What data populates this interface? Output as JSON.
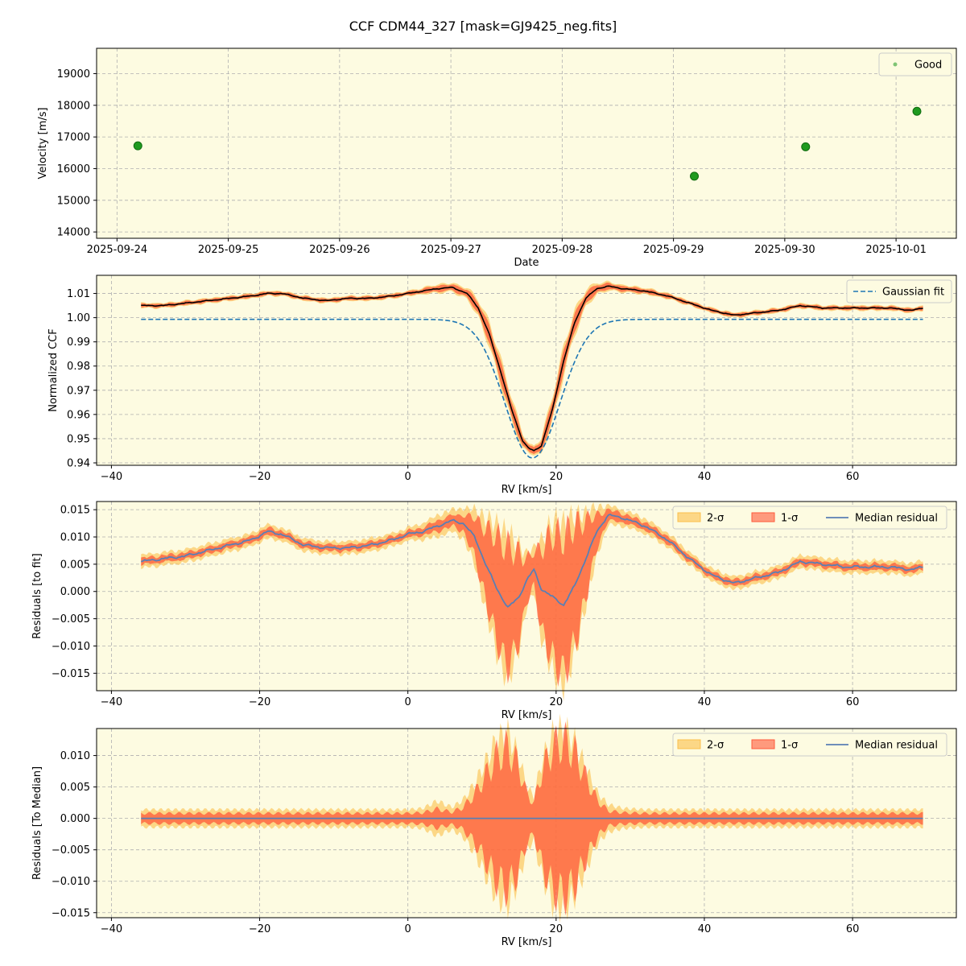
{
  "figure_title": "CCF CDM44_327 [mask=GJ9425_neg.fits]",
  "colors": {
    "background": "#fdfbe1",
    "good": "#2ca02c",
    "gaussian": "#1f77b4",
    "sigma2": "#fbbf4a",
    "sigma1": "#ff5a3a",
    "median_line": "#5a7fb4",
    "ccf_line": "#000000",
    "grid": "#b0b0b0"
  },
  "chart_data": [
    {
      "type": "scatter",
      "xlabel": "Date",
      "ylabel": "Velocity [m/s]",
      "x_tick_labels": [
        "2025-09-24",
        "2025-09-25",
        "2025-09-26",
        "2025-09-27",
        "2025-09-28",
        "2025-09-29",
        "2025-09-30",
        "2025-10-01"
      ],
      "x_ticks_days": [
        0,
        1,
        2,
        3,
        4,
        5,
        6,
        7
      ],
      "xlim": [
        "2025-09-23 19:36",
        "2025-10-01 13:00"
      ],
      "ylim": [
        13800,
        19800
      ],
      "y_ticks": [
        14000,
        15000,
        16000,
        17000,
        18000,
        19000
      ],
      "legend": {
        "position": "top-right",
        "entries": [
          "Good"
        ]
      },
      "series": [
        {
          "name": "Good",
          "points": [
            {
              "date": "2025-09-24 04:30",
              "value": 16720
            },
            {
              "date": "2025-09-29 04:30",
              "value": 15760
            },
            {
              "date": "2025-09-30 04:30",
              "value": 16690
            },
            {
              "date": "2025-10-01 04:30",
              "value": 17810
            }
          ]
        }
      ]
    },
    {
      "type": "line",
      "xlabel": "RV [km/s]",
      "ylabel": "Normalized CCF",
      "xlim": [
        -42,
        74
      ],
      "ylim": [
        0.939,
        1.0175
      ],
      "x_ticks": [
        -40,
        -20,
        0,
        20,
        40,
        60
      ],
      "y_ticks": [
        0.94,
        0.95,
        0.96,
        0.97,
        0.98,
        0.99,
        1.0,
        1.01
      ],
      "y_tick_labels": [
        "0.94",
        "0.95",
        "0.96",
        "0.97",
        "0.98",
        "0.99",
        "1.00",
        "1.01"
      ],
      "legend": {
        "position": "top-right",
        "entries": [
          "Gaussian fit"
        ]
      },
      "gaussian": {
        "name": "Gaussian fit",
        "x_range": [
          -36,
          69.5
        ],
        "baseline": 0.9993,
        "center": 16.8,
        "depth": 0.0573,
        "sigma": 3.7
      },
      "ccf": {
        "x": [
          -36,
          -33,
          -30,
          -27,
          -24,
          -21,
          -19,
          -17,
          -14,
          -11,
          -8,
          -5,
          -2,
          0,
          2,
          4,
          6,
          8,
          9.5,
          11,
          12.5,
          14,
          15.5,
          16.3,
          17,
          18,
          19.5,
          21,
          22.5,
          24,
          25.5,
          27,
          29,
          32,
          35,
          38,
          41,
          44,
          47,
          50,
          53,
          56,
          59,
          62,
          65,
          68,
          69.5
        ],
        "y": [
          1.005,
          1.005,
          1.006,
          1.007,
          1.008,
          1.009,
          1.01,
          1.01,
          1.008,
          1.007,
          1.008,
          1.008,
          1.009,
          1.01,
          1.011,
          1.012,
          1.0125,
          1.01,
          1.004,
          0.993,
          0.978,
          0.962,
          0.949,
          0.946,
          0.945,
          0.947,
          0.962,
          0.982,
          0.998,
          1.008,
          1.012,
          1.013,
          1.012,
          1.011,
          1.009,
          1.006,
          1.003,
          1.001,
          1.002,
          1.003,
          1.005,
          1.004,
          1.004,
          1.004,
          1.004,
          1.003,
          1.004
        ],
        "sigma1": [
          0.0007,
          0.0007,
          0.0007,
          0.0007,
          0.0007,
          0.0007,
          0.0007,
          0.0007,
          0.0007,
          0.0007,
          0.0007,
          0.0007,
          0.0007,
          0.0007,
          0.0009,
          0.0012,
          0.0012,
          0.0016,
          0.0024,
          0.0034,
          0.0038,
          0.0034,
          0.0022,
          0.0012,
          0.0012,
          0.0024,
          0.0036,
          0.004,
          0.0034,
          0.0024,
          0.0016,
          0.0012,
          0.001,
          0.0009,
          0.0008,
          0.0007,
          0.0007,
          0.0007,
          0.0007,
          0.0007,
          0.0007,
          0.0007,
          0.0007,
          0.0007,
          0.0007,
          0.0007,
          0.0007
        ]
      }
    },
    {
      "type": "area",
      "xlabel": "RV [km/s]",
      "ylabel": "Residuals [to fit]",
      "xlim": [
        -42,
        74
      ],
      "ylim": [
        -0.0182,
        0.0165
      ],
      "x_ticks": [
        -40,
        -20,
        0,
        20,
        40,
        60
      ],
      "y_ticks": [
        -0.015,
        -0.01,
        -0.005,
        0.0,
        0.005,
        0.01,
        0.015
      ],
      "y_tick_labels": [
        "−0.015",
        "−0.010",
        "−0.005",
        "0.000",
        "0.005",
        "0.010",
        "0.015"
      ],
      "legend": {
        "position": "top-right",
        "entries": [
          "2-σ",
          "1-σ",
          "Median residual"
        ]
      },
      "series": [
        {
          "name": "Median residual",
          "x": [
            -36,
            -33,
            -30,
            -27,
            -24,
            -21,
            -19,
            -17,
            -14,
            -11,
            -8,
            -5,
            -2,
            0,
            2,
            4,
            6,
            7.5,
            9,
            10.5,
            12,
            13.5,
            15,
            16,
            17,
            18,
            19.5,
            21,
            22.5,
            24,
            25.5,
            27,
            29,
            32,
            35,
            38,
            41,
            44,
            47,
            50,
            53,
            56,
            59,
            62,
            65,
            68,
            69.5
          ],
          "median": [
            0.0055,
            0.006,
            0.0065,
            0.0075,
            0.0085,
            0.0095,
            0.011,
            0.0105,
            0.0085,
            0.008,
            0.008,
            0.0085,
            0.0095,
            0.0105,
            0.011,
            0.012,
            0.013,
            0.0125,
            0.01,
            0.005,
            0.0005,
            -0.003,
            -0.001,
            0.002,
            0.004,
            0.0005,
            -0.001,
            -0.0025,
            0.001,
            0.006,
            0.011,
            0.014,
            0.0135,
            0.012,
            0.0095,
            0.006,
            0.003,
            0.0015,
            0.0025,
            0.0035,
            0.0055,
            0.005,
            0.0045,
            0.0045,
            0.0045,
            0.004,
            0.0045
          ],
          "sigma1": [
            0.0006,
            0.0006,
            0.0006,
            0.0006,
            0.0006,
            0.0006,
            0.0007,
            0.0006,
            0.0006,
            0.0006,
            0.0006,
            0.0006,
            0.0006,
            0.0006,
            0.0007,
            0.001,
            0.001,
            0.0015,
            0.0035,
            0.0065,
            0.0095,
            0.011,
            0.008,
            0.004,
            0.003,
            0.0075,
            0.0115,
            0.0125,
            0.011,
            0.007,
            0.003,
            0.001,
            0.0008,
            0.0007,
            0.0007,
            0.0006,
            0.0006,
            0.0006,
            0.0006,
            0.0006,
            0.0006,
            0.0006,
            0.0006,
            0.0006,
            0.0006,
            0.0006,
            0.0006
          ],
          "sigma2": [
            0.0012,
            0.0012,
            0.0012,
            0.0012,
            0.0012,
            0.0012,
            0.0013,
            0.0012,
            0.0012,
            0.0012,
            0.0012,
            0.0012,
            0.0012,
            0.0012,
            0.0015,
            0.002,
            0.002,
            0.0028,
            0.005,
            0.0085,
            0.0118,
            0.0135,
            0.0095,
            0.005,
            0.004,
            0.009,
            0.0138,
            0.0148,
            0.0128,
            0.0085,
            0.0045,
            0.0018,
            0.0015,
            0.0014,
            0.0013,
            0.0012,
            0.0012,
            0.0012,
            0.0012,
            0.0012,
            0.0012,
            0.0012,
            0.0012,
            0.0012,
            0.0012,
            0.0012,
            0.0012
          ]
        }
      ]
    },
    {
      "type": "area",
      "xlabel": "RV [km/s]",
      "ylabel": "Residuals [To Median]",
      "xlim": [
        -42,
        74
      ],
      "ylim": [
        -0.0158,
        0.0143
      ],
      "x_ticks": [
        -40,
        -20,
        0,
        20,
        40,
        60
      ],
      "y_ticks": [
        -0.015,
        -0.01,
        -0.005,
        0.0,
        0.005,
        0.01
      ],
      "y_tick_labels": [
        "−0.015",
        "−0.010",
        "−0.005",
        "0.000",
        "0.005",
        "0.010"
      ],
      "legend": {
        "position": "top-right",
        "entries": [
          "2-σ",
          "1-σ",
          "Median residual"
        ]
      },
      "series": [
        {
          "name": "Median residual",
          "x": [
            -36,
            -30,
            -25,
            -20,
            -15,
            -10,
            -5,
            0,
            2,
            3,
            4,
            5,
            6,
            7.5,
            9,
            10.5,
            12,
            13.5,
            15,
            16,
            17,
            18,
            19.5,
            21,
            22.5,
            24,
            25.5,
            27,
            29,
            32,
            35,
            40,
            45,
            50,
            55,
            60,
            65,
            69.5
          ],
          "median": [
            0,
            0,
            0,
            0,
            0,
            0,
            0,
            0,
            0,
            0,
            0,
            0,
            0,
            0,
            0,
            0,
            0,
            0,
            0,
            0,
            0,
            0,
            0,
            0,
            0,
            0,
            0,
            0,
            0,
            0,
            0,
            0,
            0,
            0,
            0,
            0,
            0,
            0
          ],
          "sigma1": [
            0.0008,
            0.0008,
            0.0008,
            0.0008,
            0.0008,
            0.0008,
            0.0008,
            0.0008,
            0.0009,
            0.0012,
            0.0015,
            0.0012,
            0.001,
            0.0018,
            0.0038,
            0.0068,
            0.0098,
            0.0112,
            0.0082,
            0.004,
            0.0025,
            0.0072,
            0.0112,
            0.0122,
            0.0105,
            0.0065,
            0.003,
            0.0012,
            0.0009,
            0.0008,
            0.0008,
            0.0008,
            0.0008,
            0.0008,
            0.0008,
            0.0008,
            0.0008,
            0.0008
          ],
          "sigma2": [
            0.0014,
            0.0014,
            0.0014,
            0.0014,
            0.0014,
            0.0014,
            0.0014,
            0.0014,
            0.0016,
            0.0022,
            0.0028,
            0.0022,
            0.0018,
            0.003,
            0.0055,
            0.009,
            0.0125,
            0.0135,
            0.0098,
            0.005,
            0.0035,
            0.0088,
            0.0132,
            0.0142,
            0.0122,
            0.008,
            0.0042,
            0.0022,
            0.0016,
            0.0014,
            0.0014,
            0.0014,
            0.0014,
            0.0014,
            0.0014,
            0.0014,
            0.0014,
            0.0014
          ]
        }
      ]
    }
  ]
}
